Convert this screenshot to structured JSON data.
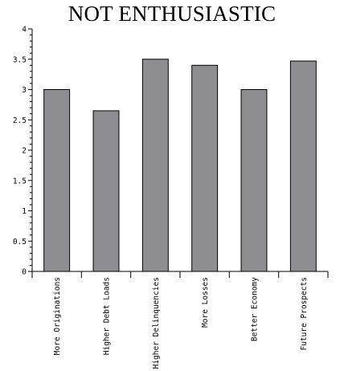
{
  "chart_data": {
    "type": "bar",
    "title": "NOT ENTHUSIASTIC",
    "xlabel": "",
    "ylabel": "",
    "ylim": [
      0,
      4
    ],
    "yticks": [
      "0",
      "0.5",
      "1",
      "1.5",
      "2",
      "2.5",
      "3",
      "3.5",
      "4"
    ],
    "categories": [
      "More Originations",
      "Higher Debt Loads",
      "Higher Delinquencies",
      "More Losses",
      "Better Economy",
      "Future Prospects"
    ],
    "values": [
      3.0,
      2.65,
      3.5,
      3.4,
      3.0,
      3.47
    ],
    "grid": false,
    "legend": "none",
    "bar_color": "#8e8e92",
    "bar_edge_color": "#000000"
  }
}
